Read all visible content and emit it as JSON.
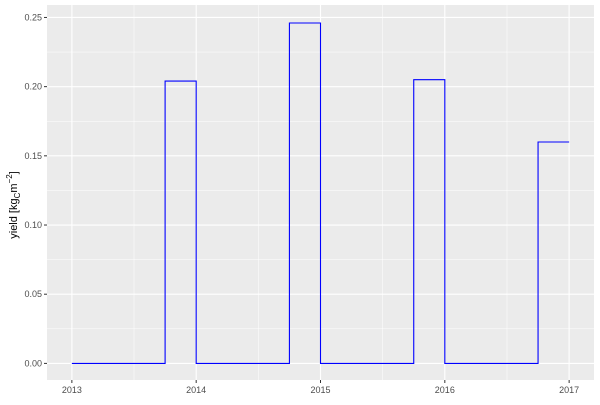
{
  "chart_data": {
    "type": "line",
    "step": "hv",
    "title": "",
    "xlabel": "",
    "ylabel": {
      "main": "yield [kg",
      "sub": "C",
      "mid": "m",
      "sup": "−2",
      "end": "]"
    },
    "x_ticks": [
      "2013",
      "2014",
      "2015",
      "2016",
      "2017"
    ],
    "y_ticks": [
      "0.00",
      "0.05",
      "0.10",
      "0.15",
      "0.20",
      "0.25"
    ],
    "xlim": [
      2012.8,
      2017.2
    ],
    "ylim": [
      -0.012,
      0.259
    ],
    "grid": true,
    "series": [
      {
        "color": "#0000ff",
        "x": [
          "2013-01",
          "2013-10",
          "2014-01",
          "2014-10",
          "2015-01",
          "2015-10",
          "2016-01",
          "2016-10",
          "2017-01"
        ],
        "y": [
          0,
          0.204,
          0,
          0.246,
          0,
          0.205,
          0,
          0.16,
          0.16
        ]
      }
    ],
    "colors": {
      "panel": "#ebebeb",
      "grid": "#ffffff",
      "text": "#4d4d4d"
    }
  }
}
